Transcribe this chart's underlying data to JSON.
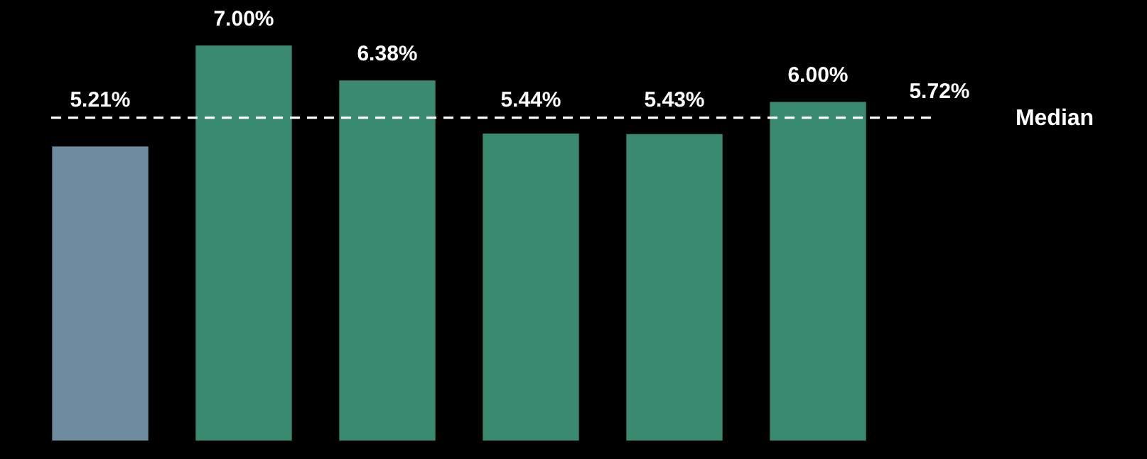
{
  "chart_data": {
    "type": "bar",
    "categories": [
      null,
      null,
      null,
      null,
      null,
      null
    ],
    "values": [
      5.21,
      7.0,
      6.38,
      5.44,
      5.43,
      6.0
    ],
    "colors": [
      "#6e8ca0",
      "#3a8a72",
      "#3a8a72",
      "#3a8a72",
      "#3a8a72",
      "#3a8a72"
    ],
    "value_labels": [
      "5.21%",
      "7.00%",
      "6.38%",
      "5.44%",
      "5.43%",
      "6.00%"
    ],
    "ref_lines": [
      {
        "axis": "y",
        "value": 5.72,
        "label": "Median",
        "color": "#ffffff",
        "line_style": "dashed"
      }
    ],
    "annotations": [
      {
        "text": "5.72%",
        "y": 5.72
      }
    ]
  }
}
